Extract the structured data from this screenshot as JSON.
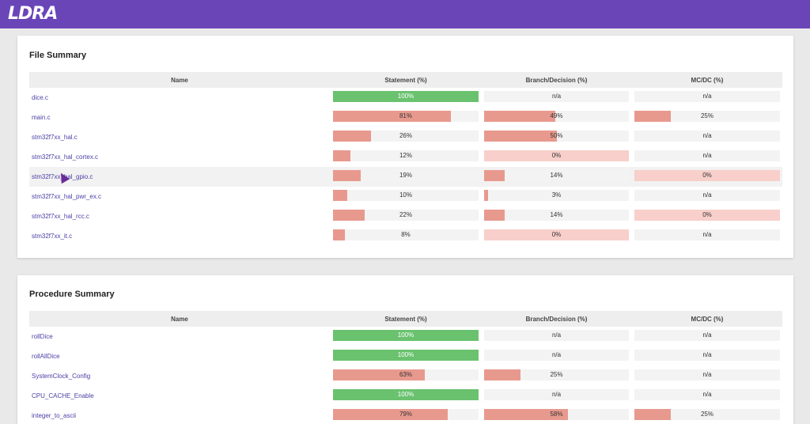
{
  "app": {
    "logo": "LDRA"
  },
  "colors": {
    "header": "#6a45b8",
    "full": "#6ac26f",
    "partial": "#e8998e",
    "zero": "#f8cfca",
    "link": "#4a3fa5"
  },
  "columns": {
    "name": "Name",
    "statement": "Statement (%)",
    "branch": "Branch/Decision (%)",
    "mcdc": "MC/DC (%)"
  },
  "file_summary": {
    "title": "File Summary",
    "rows": [
      {
        "name": "dice.c",
        "statement": "100%",
        "branch": "n/a",
        "mcdc": "n/a"
      },
      {
        "name": "main.c",
        "statement": "81%",
        "branch": "49%",
        "mcdc": "25%"
      },
      {
        "name": "stm32f7xx_hal.c",
        "statement": "26%",
        "branch": "50%",
        "mcdc": "n/a"
      },
      {
        "name": "stm32f7xx_hal_cortex.c",
        "statement": "12%",
        "branch": "0%",
        "mcdc": "n/a"
      },
      {
        "name": "stm32f7xx_hal_gpio.c",
        "statement": "19%",
        "branch": "14%",
        "mcdc": "0%"
      },
      {
        "name": "stm32f7xx_hal_pwr_ex.c",
        "statement": "10%",
        "branch": "3%",
        "mcdc": "n/a"
      },
      {
        "name": "stm32f7xx_hal_rcc.c",
        "statement": "22%",
        "branch": "14%",
        "mcdc": "0%"
      },
      {
        "name": "stm32f7xx_it.c",
        "statement": "8%",
        "branch": "0%",
        "mcdc": "n/a"
      }
    ]
  },
  "procedure_summary": {
    "title": "Procedure Summary",
    "rows": [
      {
        "name": "rollDice",
        "statement": "100%",
        "branch": "n/a",
        "mcdc": "n/a"
      },
      {
        "name": "rollAllDice",
        "statement": "100%",
        "branch": "n/a",
        "mcdc": "n/a"
      },
      {
        "name": "SystemClock_Config",
        "statement": "63%",
        "branch": "25%",
        "mcdc": "n/a"
      },
      {
        "name": "CPU_CACHE_Enable",
        "statement": "100%",
        "branch": "n/a",
        "mcdc": "n/a"
      },
      {
        "name": "integer_to_ascii",
        "statement": "79%",
        "branch": "58%",
        "mcdc": "25%"
      }
    ]
  }
}
